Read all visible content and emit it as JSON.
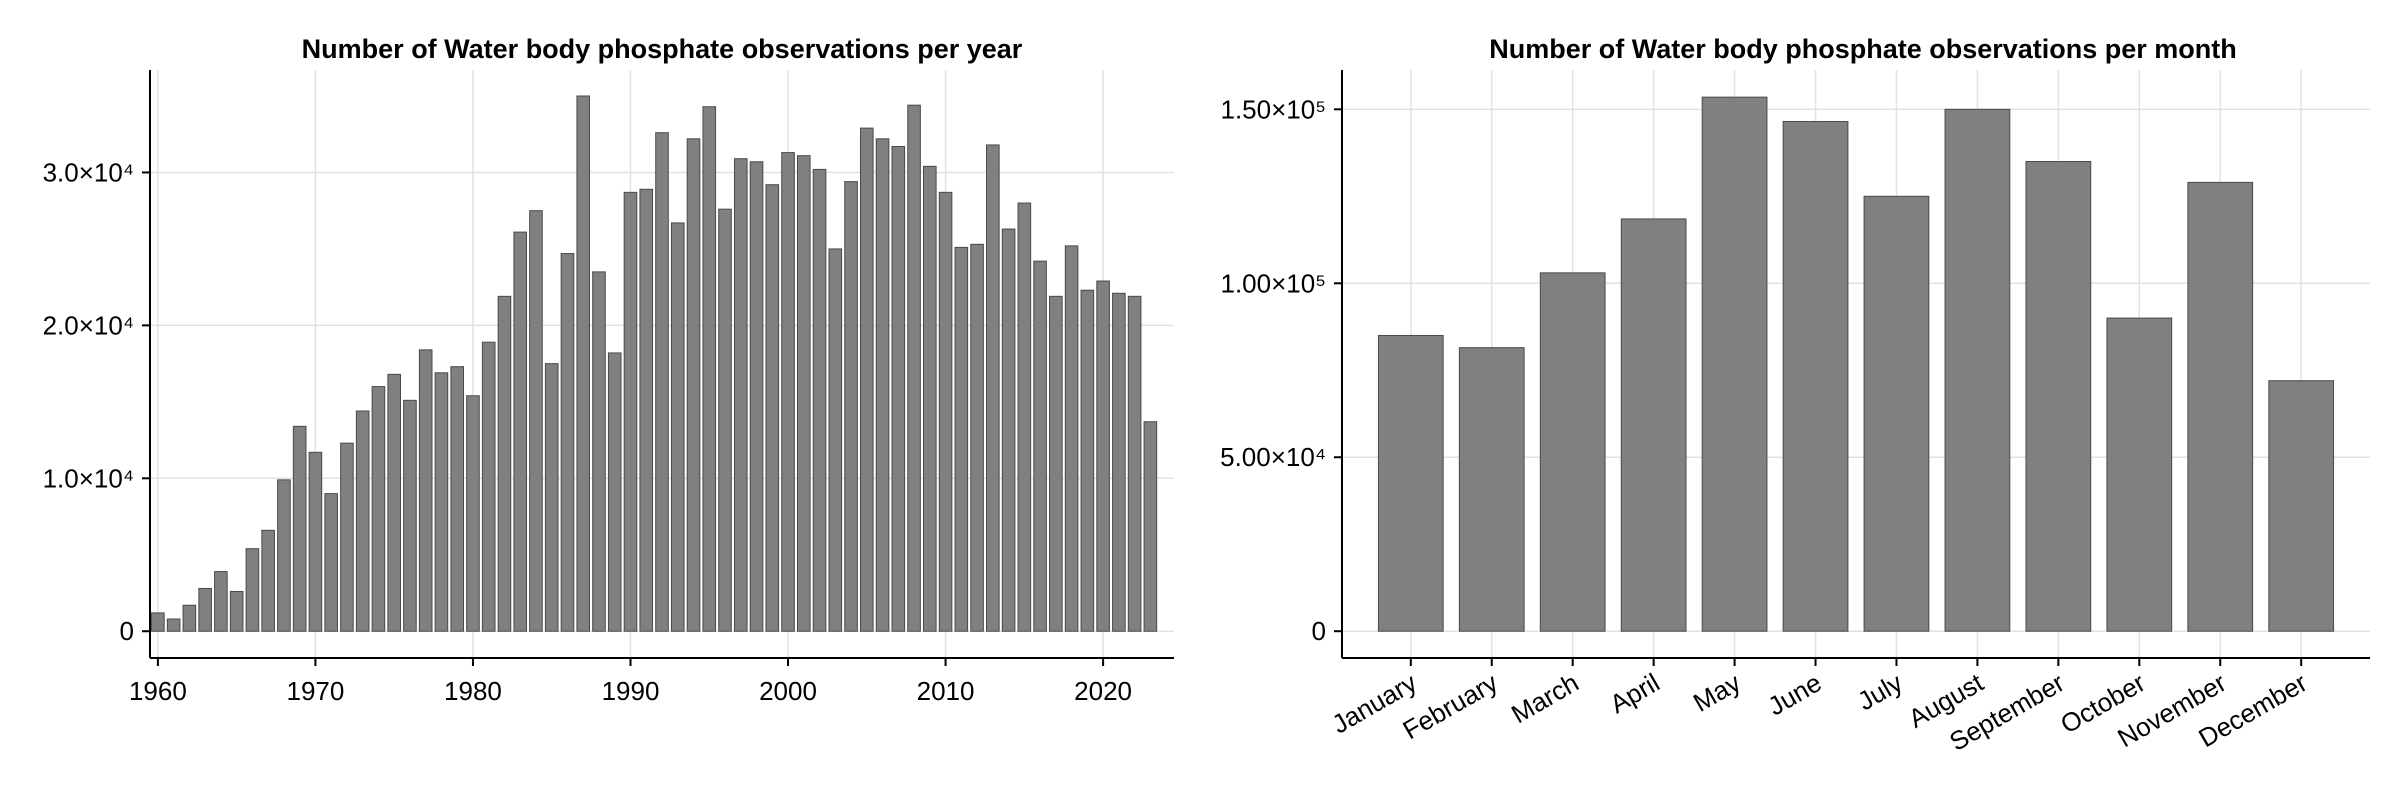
{
  "chart_data": [
    {
      "type": "bar",
      "title": "Number of Water body phosphate observations per year",
      "xlabel": "",
      "ylabel": "",
      "x_tick_labels": [
        "1960",
        "1970",
        "1980",
        "1990",
        "2000",
        "2010",
        "2020"
      ],
      "y_tick_labels": [
        "0",
        "1.0×10⁴",
        "2.0×10⁴",
        "3.0×10⁴"
      ],
      "y_ticks": [
        0,
        10000,
        20000,
        30000
      ],
      "x_ticks": [
        1960,
        1970,
        1980,
        1990,
        2000,
        2010,
        2020
      ],
      "xlim": [
        1959.5,
        2024.5
      ],
      "ylim": [
        -1750,
        36700
      ],
      "grid": true,
      "bar_color": "#808080",
      "x": [
        1960,
        1961,
        1962,
        1963,
        1964,
        1965,
        1966,
        1967,
        1968,
        1969,
        1970,
        1971,
        1972,
        1973,
        1974,
        1975,
        1976,
        1977,
        1978,
        1979,
        1980,
        1981,
        1982,
        1983,
        1984,
        1985,
        1986,
        1987,
        1988,
        1989,
        1990,
        1991,
        1992,
        1993,
        1994,
        1995,
        1996,
        1997,
        1998,
        1999,
        2000,
        2001,
        2002,
        2003,
        2004,
        2005,
        2006,
        2007,
        2008,
        2009,
        2010,
        2011,
        2012,
        2013,
        2014,
        2015,
        2016,
        2017,
        2018,
        2019,
        2020,
        2021,
        2022,
        2023
      ],
      "values": [
        1200,
        800,
        1700,
        2800,
        3900,
        2600,
        5400,
        6600,
        9900,
        13400,
        11700,
        9000,
        12300,
        14400,
        16000,
        16800,
        15100,
        18400,
        16900,
        17300,
        15400,
        18900,
        21900,
        26100,
        27500,
        17500,
        24700,
        35000,
        23500,
        18200,
        28700,
        28900,
        32600,
        26700,
        32200,
        34300,
        27600,
        30900,
        30700,
        29200,
        31300,
        31100,
        30200,
        25000,
        29400,
        32900,
        32200,
        31700,
        34400,
        30400,
        28700,
        25100,
        25300,
        31800,
        26300,
        28000,
        24200,
        21900,
        25200,
        22300,
        22900,
        22100,
        21900,
        13700
      ]
    },
    {
      "type": "bar",
      "title": "Number of Water body phosphate observations per month",
      "xlabel": "",
      "ylabel": "",
      "categories": [
        "January",
        "February",
        "March",
        "April",
        "May",
        "June",
        "July",
        "August",
        "September",
        "October",
        "November",
        "December"
      ],
      "y_tick_labels": [
        "0",
        "5.00×10⁴",
        "1.00×10⁵",
        "1.50×10⁵"
      ],
      "y_ticks": [
        0,
        50000,
        100000,
        150000
      ],
      "ylim": [
        -7700,
        161300
      ],
      "grid": true,
      "bar_color": "#808080",
      "values": [
        85000,
        81500,
        103000,
        118500,
        153500,
        146500,
        125000,
        150000,
        135000,
        90000,
        129000,
        72000
      ]
    }
  ]
}
